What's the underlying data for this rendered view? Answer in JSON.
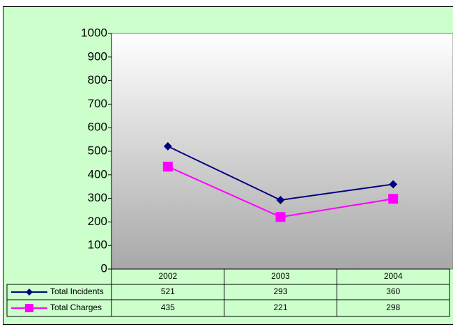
{
  "chart_data": {
    "type": "line",
    "categories": [
      "2002",
      "2003",
      "2004"
    ],
    "series": [
      {
        "name": "Total Incidents",
        "color": "#000080",
        "marker": "diamond",
        "values": [
          521,
          293,
          360
        ]
      },
      {
        "name": "Total Charges",
        "color": "#ff00ff",
        "marker": "square",
        "values": [
          435,
          221,
          298
        ]
      }
    ],
    "ylim": [
      0,
      1000
    ],
    "yticks": [
      0,
      100,
      200,
      300,
      400,
      500,
      600,
      700,
      800,
      900,
      1000
    ],
    "data_table": true
  }
}
